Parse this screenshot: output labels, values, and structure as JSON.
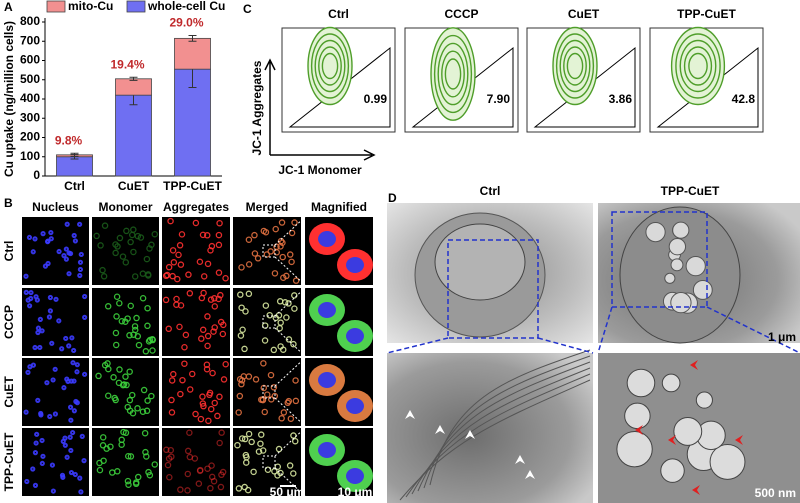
{
  "chart_data": {
    "type": "bar",
    "stacked": true,
    "panel_label": "A",
    "categories": [
      "Ctrl",
      "CuET",
      "TPP-CuET"
    ],
    "series": [
      {
        "name": "whole-cell Cu",
        "color": "#6f6ff2",
        "values": [
          100,
          420,
          555
        ],
        "errors": [
          12,
          50,
          95
        ]
      },
      {
        "name": "mito-Cu",
        "color": "#f29090",
        "values": [
          10,
          85,
          160
        ],
        "errors": [
          8,
          8,
          15
        ]
      }
    ],
    "annotations": [
      "9.8%",
      "19.4%",
      "29.0%"
    ],
    "ylabel": "Cu uptake (ng/million cells)",
    "ylim": [
      0,
      800
    ],
    "yticks": [
      0,
      100,
      200,
      300,
      400,
      500,
      600,
      700,
      800
    ],
    "legend": "top"
  },
  "panel_b": {
    "label": "B",
    "columns": [
      "Nucleus",
      "Monomer",
      "Aggregates",
      "Merged",
      "Magnified"
    ],
    "rows": [
      "Ctrl",
      "CCCP",
      "CuET",
      "TPP-CuET"
    ],
    "scale_bars": [
      "50 μm",
      "10 μm"
    ]
  },
  "panel_c": {
    "label": "C",
    "plots": [
      {
        "title": "Ctrl",
        "value": "0.99"
      },
      {
        "title": "CCCP",
        "value": "7.90"
      },
      {
        "title": "CuET",
        "value": "3.86"
      },
      {
        "title": "TPP-CuET",
        "value": "42.8"
      }
    ],
    "ylabel": "JC-1 Aggregates",
    "xlabel": "JC-1 Monomer"
  },
  "panel_d": {
    "label": "D",
    "titles": [
      "Ctrl",
      "TPP-CuET"
    ],
    "scale_bars": [
      "1 μm",
      "500 nm"
    ]
  }
}
